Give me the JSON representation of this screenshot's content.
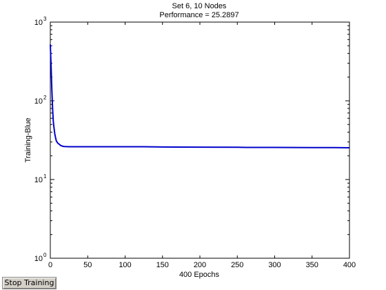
{
  "figure": {
    "title": "Set 6, 10 Nodes",
    "subtitle": "Performance = 25.2897"
  },
  "chart_data": {
    "type": "line",
    "title": "Set 6, 10 Nodes",
    "subtitle": "Performance = 25.2897",
    "xlabel": "400 Epochs",
    "ylabel": "Training-Blue",
    "xlim": [
      0,
      400
    ],
    "ylim": [
      1,
      1000
    ],
    "y_scale": "log",
    "grid": false,
    "x_ticks": [
      0,
      50,
      100,
      150,
      200,
      250,
      300,
      350,
      400
    ],
    "y_ticks": [
      {
        "value": 1,
        "base": "10",
        "exp": "0"
      },
      {
        "value": 10,
        "base": "10",
        "exp": "1"
      },
      {
        "value": 100,
        "base": "10",
        "exp": "2"
      },
      {
        "value": 1000,
        "base": "10",
        "exp": "3"
      }
    ],
    "series": [
      {
        "color": "#0000cc",
        "x": [
          0,
          1,
          2,
          3,
          4,
          5,
          6,
          7,
          8,
          10,
          12,
          14,
          16,
          18,
          20,
          25,
          30,
          40,
          50,
          75,
          100,
          125,
          150,
          200,
          250,
          262,
          300,
          350,
          380,
          400
        ],
        "y": [
          520,
          280,
          140,
          80,
          55,
          45,
          38,
          34,
          31,
          29,
          28,
          27,
          26.6,
          26.3,
          26.2,
          26.1,
          26.1,
          26.1,
          26.1,
          26.1,
          26.1,
          26.1,
          25.9,
          25.8,
          25.7,
          25.6,
          25.6,
          25.5,
          25.4,
          25.3
        ]
      }
    ]
  },
  "controls": {
    "stop_label": "Stop Training"
  }
}
